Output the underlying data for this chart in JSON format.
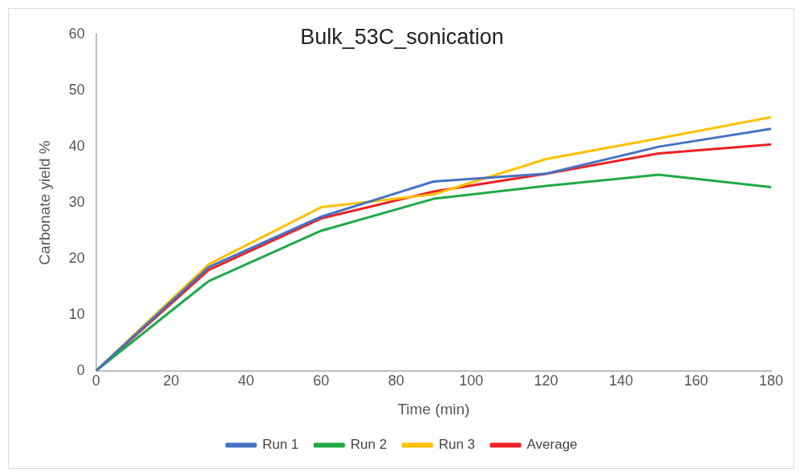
{
  "chart_data": {
    "type": "line",
    "title": "Bulk_53C_sonication",
    "xlabel": "Time (min)",
    "ylabel": "Carbonate yield %",
    "x": [
      0,
      30,
      60,
      90,
      120,
      150,
      180
    ],
    "xlim": [
      0,
      180
    ],
    "xticks": [
      0,
      20,
      40,
      60,
      80,
      100,
      120,
      140,
      160,
      180
    ],
    "ylim": [
      0,
      60
    ],
    "yticks": [
      0,
      10,
      20,
      30,
      40,
      50,
      60
    ],
    "grid": false,
    "legend": "bottom",
    "marker": "none",
    "line_style": "solid",
    "series": [
      {
        "name": "Run 1",
        "color": "#4472c4",
        "values": [
          0,
          18.5,
          27.5,
          33.8,
          35.2,
          40,
          43.2
        ]
      },
      {
        "name": "Run 2",
        "color": "#1faa45",
        "values": [
          0,
          16,
          25,
          30.7,
          33,
          35,
          32.8
        ]
      },
      {
        "name": "Run 3",
        "color": "#ffc000",
        "values": [
          0,
          19,
          29.2,
          31.5,
          37.8,
          41.5,
          45.3
        ]
      },
      {
        "name": "Average",
        "color": "#ee2024",
        "values": [
          0,
          18,
          27.2,
          32,
          35.2,
          38.8,
          40.4
        ]
      }
    ]
  }
}
